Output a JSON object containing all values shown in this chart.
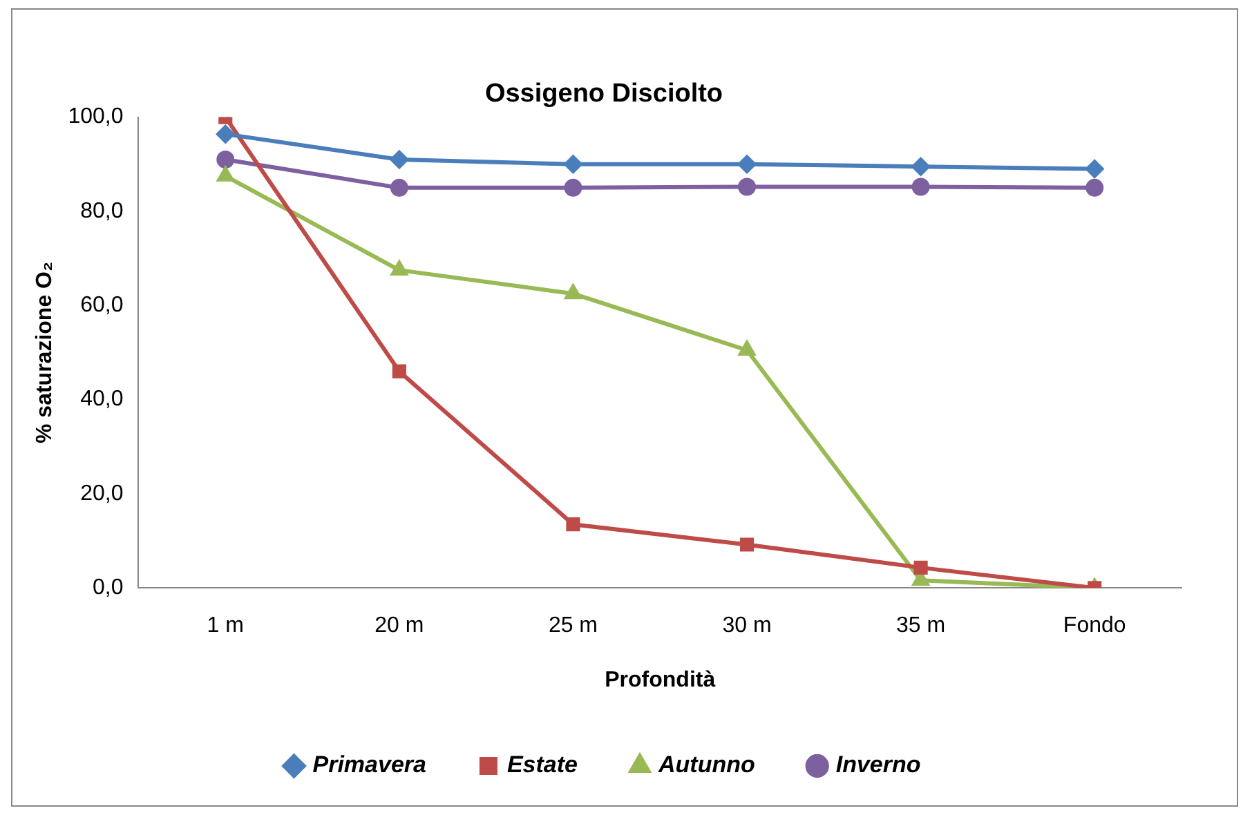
{
  "chart_data": {
    "type": "line",
    "title": "Ossigeno Disciolto",
    "xlabel": "Profondità",
    "ylabel": "% saturazione O₂",
    "categories": [
      "1 m",
      "20 m",
      "25 m",
      "30 m",
      "35 m",
      "Fondo"
    ],
    "series": [
      {
        "name": "Primavera",
        "color": "#4a7ebb",
        "marker": "diamond",
        "values": [
          96.4,
          91,
          90,
          90,
          89.5,
          89
        ]
      },
      {
        "name": "Estate",
        "color": "#be4b48",
        "marker": "square",
        "values": [
          100,
          46,
          13.5,
          9.2,
          4.3,
          0
        ]
      },
      {
        "name": "Autunno",
        "color": "#98b954",
        "marker": "triangle",
        "values": [
          87.5,
          67.5,
          62.5,
          50.5,
          1.6,
          0
        ]
      },
      {
        "name": "Inverno",
        "color": "#7d60a0",
        "marker": "circle",
        "values": [
          91,
          85,
          85,
          85.2,
          85.2,
          85
        ]
      }
    ],
    "ylim": [
      0,
      100
    ],
    "yticks": [
      {
        "value": 0,
        "label": "0,0"
      },
      {
        "value": 20,
        "label": "20,0"
      },
      {
        "value": 40,
        "label": "40,0"
      },
      {
        "value": 60,
        "label": "60,0"
      },
      {
        "value": 80,
        "label": "80,0"
      },
      {
        "value": 100,
        "label": "100,0"
      }
    ],
    "grid": false,
    "legend": "bottom"
  }
}
